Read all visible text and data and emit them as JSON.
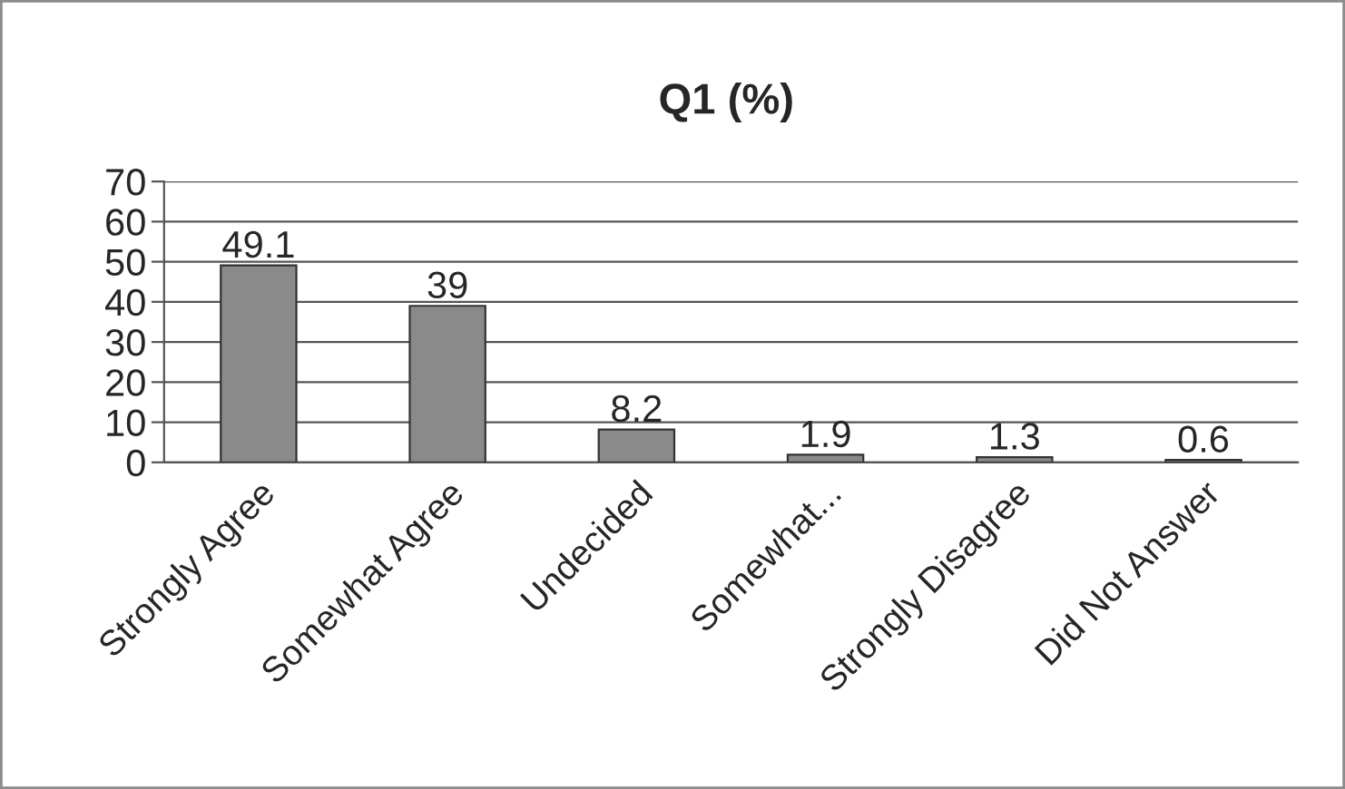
{
  "chart_data": {
    "type": "bar",
    "title": "Q1 (%)",
    "categories": [
      "Strongly Agree",
      "Somewhat Agree",
      "Undecided",
      "Somewhat...",
      "Strongly Disagree",
      "Did Not Answer"
    ],
    "values": [
      49.1,
      39,
      8.2,
      1.9,
      1.3,
      0.6
    ],
    "color": "#8a8a8a",
    "ylim": [
      0,
      70
    ],
    "yticks": [
      0,
      10,
      20,
      30,
      40,
      50,
      60,
      70
    ],
    "grid": "y",
    "data_labels": true
  }
}
